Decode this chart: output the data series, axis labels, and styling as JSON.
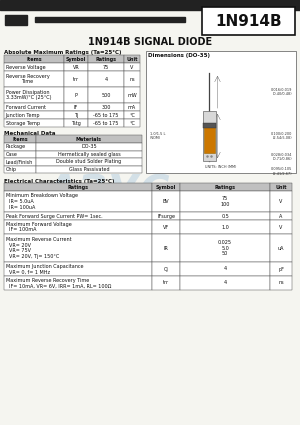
{
  "title": "1N914B SIGNAL DIODE",
  "part_number": "1N914B",
  "background": "#f5f5f0",
  "text_color": "#111111",
  "header_bg": "#c8c8c8",
  "watermark_color": "#b8cfe0",
  "abs_max_title": "Absolute Maximum Ratings (Ta=25°C)",
  "abs_max_headers": [
    "Items",
    "Symbol",
    "Ratings",
    "Unit"
  ],
  "abs_max_rows": [
    [
      "Reverse Voltage",
      "VR",
      "75",
      "V"
    ],
    [
      "Reverse Recovery\nTime",
      "trr",
      "4",
      "ns"
    ],
    [
      "Power Dissipation\n3.33mW/°C (25°C)",
      "P",
      "500",
      "mW"
    ],
    [
      "Forward Current",
      "IF",
      "300",
      "mA"
    ],
    [
      "Junction Temp",
      "Tj",
      "-65 to 175",
      "°C"
    ],
    [
      "Storage Temp",
      "Tstg",
      "-65 to 175",
      "°C"
    ]
  ],
  "mech_title": "Mechanical Data",
  "mech_headers": [
    "Items",
    "Materials"
  ],
  "mech_rows": [
    [
      "Package",
      "DO-35"
    ],
    [
      "Case",
      "Hermetically sealed glass"
    ],
    [
      "Lead/Finish",
      "Double stud Solder Plating"
    ],
    [
      "Chip",
      "Glass Passivated"
    ]
  ],
  "dim_title": "Dimensions (DO-35)",
  "elec_title": "Electrical Characteristics (Ta=25°C)",
  "elec_headers": [
    "Ratings",
    "Symbol",
    "Ratings",
    "Unit"
  ],
  "elec_rows": [
    [
      "Minimum Breakdown Voltage\n  IR= 5.0uA\n  IR= 100uA",
      "BV",
      "75\n100",
      "V"
    ],
    [
      "Peak Forward Surge Current PW= 1sec.",
      "IFsurge",
      "0.5",
      "A"
    ],
    [
      "Maximum Forward Voltage\n  IF= 100mA",
      "VF",
      "1.0",
      "V"
    ],
    [
      "Maximum Reverse Current\n  VR= 20V\n  VR= 75V\n  VR= 20V, Tj= 150°C",
      "IR",
      "0.025\n5.0\n50",
      "uA"
    ],
    [
      "Maximum Junction Capacitance\n  VR= 0, f= 1 MHz",
      "Cj",
      "4",
      "pF"
    ],
    [
      "Maximum Reverse Recovery Time\n  IF= 10mA, VR= 6V, IRR= 1mA, RL= 100Ω",
      "trr",
      "4",
      "ns"
    ]
  ]
}
